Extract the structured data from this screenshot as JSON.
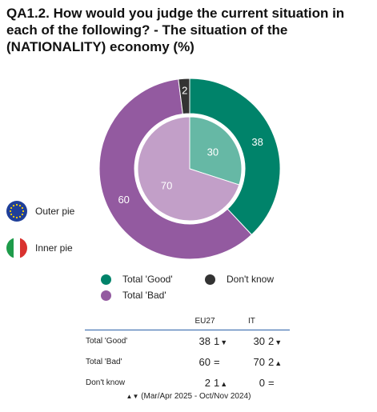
{
  "title": "QA1.2. How would you judge the current situation in each of the following? - The situation of the (NATIONALITY) economy (%)",
  "chart_data": {
    "type": "pie",
    "title": "QA1.2. How would you judge the current situation in each of the following? - The situation of the (NATIONALITY) economy (%)",
    "outer": {
      "name": "Outer pie",
      "slices": [
        {
          "label": "Total 'Good'",
          "value": 38,
          "color": "#00836a"
        },
        {
          "label": "Total 'Bad'",
          "value": 60,
          "color": "#935aa0"
        },
        {
          "label": "Don't know",
          "value": 2,
          "color": "#333333"
        }
      ]
    },
    "inner": {
      "name": "Inner pie",
      "slices": [
        {
          "label": "Total 'Good'",
          "value": 30,
          "color": "#66b8a5"
        },
        {
          "label": "Total 'Bad'",
          "value": 70,
          "color": "#c29fc8"
        }
      ]
    },
    "legend_placement": "bottom"
  },
  "side_legend": {
    "outer": {
      "label": "Outer pie",
      "icon": "eu-flag-icon"
    },
    "inner": {
      "label": "Inner pie",
      "icon": "italy-flag-icon"
    }
  },
  "legend": {
    "items": [
      {
        "label": "Total 'Good'",
        "color": "#00836a"
      },
      {
        "label": "Don't know",
        "color": "#333333"
      },
      {
        "label": "Total 'Bad'",
        "color": "#935aa0"
      }
    ]
  },
  "table": {
    "headers": [
      "EU27",
      "IT"
    ],
    "rows": [
      {
        "label": "Total 'Good'",
        "eu_val": "38",
        "eu_chg": "1",
        "eu_dir": "down",
        "it_val": "30",
        "it_chg": "2",
        "it_dir": "down"
      },
      {
        "label": "Total 'Bad'",
        "eu_val": "60",
        "eu_chg": "=",
        "eu_dir": "none",
        "it_val": "70",
        "it_chg": "2",
        "it_dir": "up"
      },
      {
        "label": "Don't know",
        "eu_val": "2",
        "eu_chg": "1",
        "eu_dir": "up",
        "it_val": "0",
        "it_chg": "=",
        "it_dir": "none"
      }
    ]
  },
  "footnote": "(Mar/Apr 2025 - Oct/Nov 2024)"
}
